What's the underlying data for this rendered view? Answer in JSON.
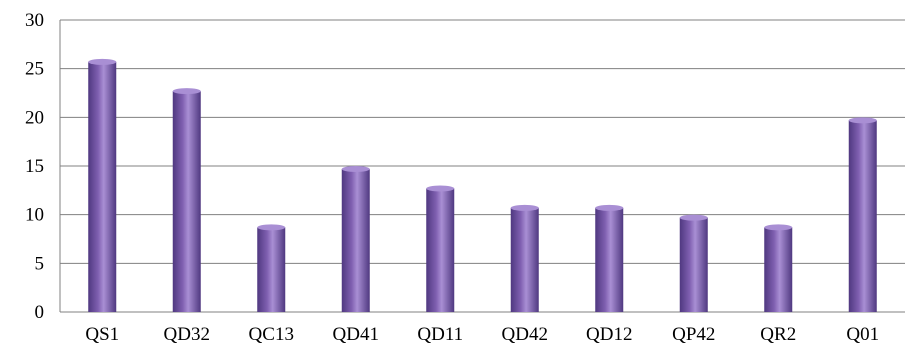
{
  "chart_data": {
    "type": "bar",
    "categories": [
      "QS1",
      "QD32",
      "QC13",
      "QD41",
      "QD11",
      "QD42",
      "QD12",
      "QP42",
      "QR2",
      "Q01"
    ],
    "values": [
      26,
      23,
      9,
      15,
      13,
      11,
      11,
      10,
      9,
      20
    ],
    "ylim": [
      0,
      30
    ],
    "yticks": [
      "0",
      "5",
      "10",
      "15",
      "20",
      "25",
      "30"
    ],
    "grid": true,
    "legend": "none",
    "colors": {
      "bar": "#7f5fb0",
      "bar_dark": "#4f3880",
      "bar_light": "#a98fd4",
      "grid": "#808080"
    }
  }
}
